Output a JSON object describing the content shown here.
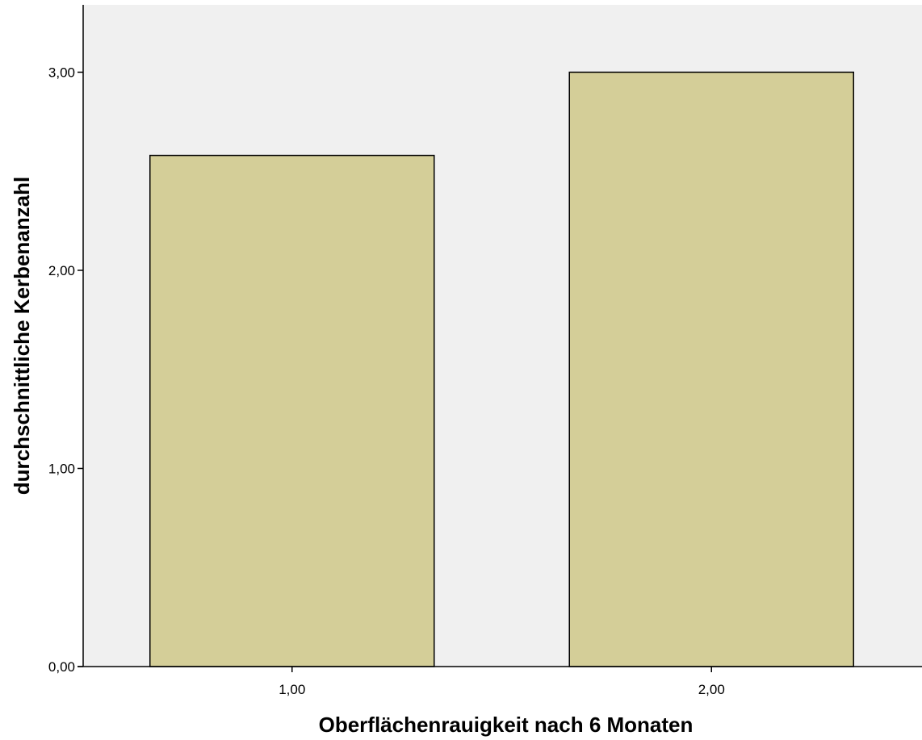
{
  "chart_data": {
    "type": "bar",
    "title": "",
    "xlabel": "Oberflächenrauigkeit nach 6 Monaten",
    "ylabel": "durchschnittliche Kerbenanzahl",
    "categories": [
      "1,00",
      "2,00"
    ],
    "values": [
      2.58,
      3.0
    ],
    "ylim": [
      0,
      3.34
    ],
    "yticks": [
      0,
      1,
      2,
      3
    ],
    "ytick_labels": [
      "0,00",
      "1,00",
      "2,00",
      "3,00"
    ],
    "grid": false,
    "colors": {
      "plot_background": "#f0f0f0",
      "bar_fill": "#d4ce98",
      "bar_stroke": "#000000"
    }
  }
}
